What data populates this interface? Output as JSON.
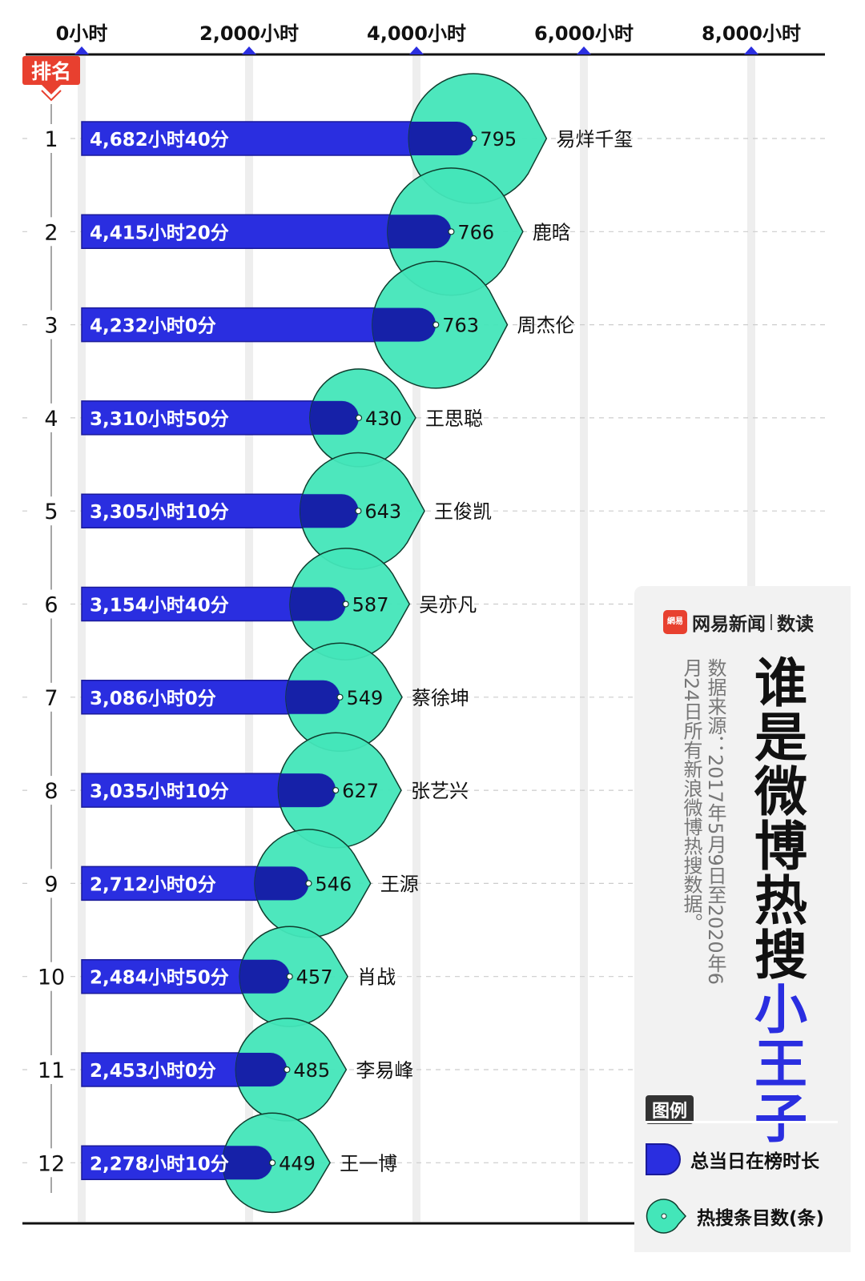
{
  "chart_data": {
    "type": "bar",
    "title": "谁是微博热搜小王子",
    "title_main": "谁是微博热搜",
    "title_highlight": "小王子",
    "axis": {
      "ticks": [
        0,
        2000,
        4000,
        6000,
        8000
      ],
      "tick_labels": [
        "0小时",
        "2,000小时",
        "4,000小时",
        "6,000小时",
        "8,000小时"
      ],
      "xlim": [
        0,
        8000
      ]
    },
    "rank_badge": "排名",
    "categories": [
      "易烊千玺",
      "鹿晗",
      "周杰伦",
      "王思聪",
      "王俊凯",
      "吴亦凡",
      "蔡徐坤",
      "张艺兴",
      "王源",
      "肖战",
      "李易峰",
      "王一博"
    ],
    "ranks": [
      "1",
      "2",
      "3",
      "4",
      "5",
      "6",
      "7",
      "8",
      "9",
      "10",
      "11",
      "12"
    ],
    "series": [
      {
        "name": "总当日在榜时长",
        "unit": "小时",
        "values": [
          4682.67,
          4415.33,
          4232,
          3310.83,
          3305.17,
          3154.67,
          3086,
          3035.17,
          2712,
          2484.83,
          2453,
          2278.17
        ],
        "labels": [
          "4,682小时40分",
          "4,415小时20分",
          "4,232小时0分",
          "3,310小时50分",
          "3,305小时10分",
          "3,154小时40分",
          "3,086小时0分",
          "3,035小时10分",
          "2,712小时0分",
          "2,484小时50分",
          "2,453小时0分",
          "2,278小时10分"
        ]
      },
      {
        "name": "热搜条目数(条)",
        "values": [
          795,
          766,
          763,
          430,
          643,
          587,
          549,
          627,
          546,
          457,
          485,
          449
        ],
        "labels": [
          "795",
          "766",
          "763",
          "430",
          "643",
          "587",
          "549",
          "627",
          "546",
          "457",
          "485",
          "449"
        ]
      }
    ],
    "colors": {
      "bar": "#2a2ee0",
      "bar_stroke": "#1a1a9a",
      "bubble": "#43e6b9",
      "bubble_stroke": "#0f3d2e",
      "overlap_bar": "#1621a8",
      "badge": "#e8402f"
    },
    "grid": true
  },
  "brand": {
    "logo_text": "網易",
    "name": "网易新闻",
    "column": "数读"
  },
  "source": "数据来源：2017年5月9日至2020年6月24日所有新浪微博热搜数据。",
  "legend": {
    "title": "图例",
    "bar_label": "总当日在榜时长",
    "bubble_label": "热搜条目数(条)"
  }
}
